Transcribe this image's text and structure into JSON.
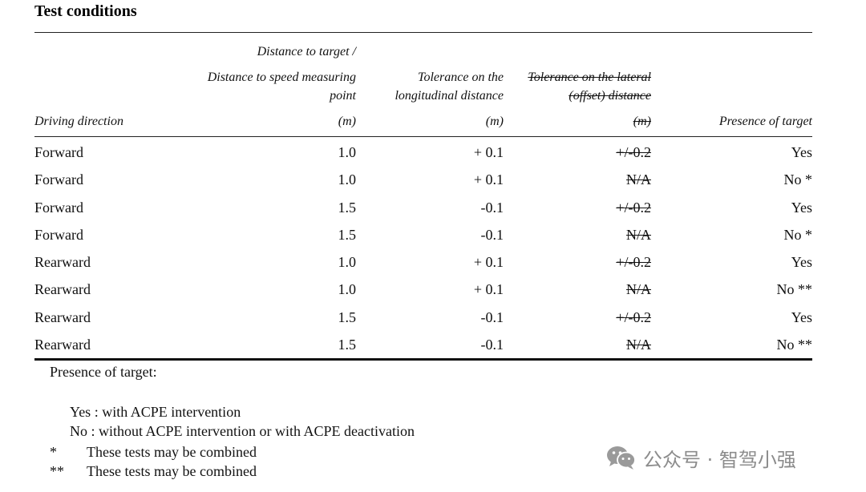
{
  "title": "Test conditions",
  "headers": {
    "driving_direction": "Driving direction",
    "distance_line1": "Distance to target /",
    "distance_line2": "Distance to speed measuring",
    "distance_line3": "point",
    "distance_unit": "(m)",
    "long_tol_line1": "Tolerance on the",
    "long_tol_line2": "longitudinal distance",
    "long_tol_unit": "(m)",
    "lat_tol_line1": "Tolerance on the lateral",
    "lat_tol_line2": "(offset) distance",
    "lat_tol_unit": "(m)",
    "presence": "Presence of target"
  },
  "rows": [
    {
      "direction": "Forward",
      "distance": "1.0",
      "long_tol": "+ 0.1",
      "lat_tol": "+/-0.2",
      "presence": "Yes"
    },
    {
      "direction": "Forward",
      "distance": "1.0",
      "long_tol": "+ 0.1",
      "lat_tol": "N/A",
      "presence": "No *"
    },
    {
      "direction": "Forward",
      "distance": "1.5",
      "long_tol": "-0.1",
      "lat_tol": "+/-0.2",
      "presence": "Yes"
    },
    {
      "direction": "Forward",
      "distance": "1.5",
      "long_tol": "-0.1",
      "lat_tol": "N/A",
      "presence": "No *"
    },
    {
      "direction": "Rearward",
      "distance": "1.0",
      "long_tol": "+ 0.1",
      "lat_tol": "+/-0.2",
      "presence": "Yes"
    },
    {
      "direction": "Rearward",
      "distance": "1.0",
      "long_tol": "+ 0.1",
      "lat_tol": "N/A",
      "presence": "No **"
    },
    {
      "direction": "Rearward",
      "distance": "1.5",
      "long_tol": "-0.1",
      "lat_tol": "+/-0.2",
      "presence": "Yes"
    },
    {
      "direction": "Rearward",
      "distance": "1.5",
      "long_tol": "-0.1",
      "lat_tol": "N/A",
      "presence": "No **"
    }
  ],
  "notes": {
    "heading": "Presence of target:",
    "yes": "Yes : with ACPE intervention",
    "no": "No :  without ACPE intervention or with ACPE deactivation",
    "star1_mark": "*",
    "star1_text": "These tests may be combined",
    "star2_mark": "**",
    "star2_text": "These tests may be combined"
  },
  "watermark": {
    "text": "公众号 · 智驾小强",
    "icon": "wechat-icon"
  }
}
